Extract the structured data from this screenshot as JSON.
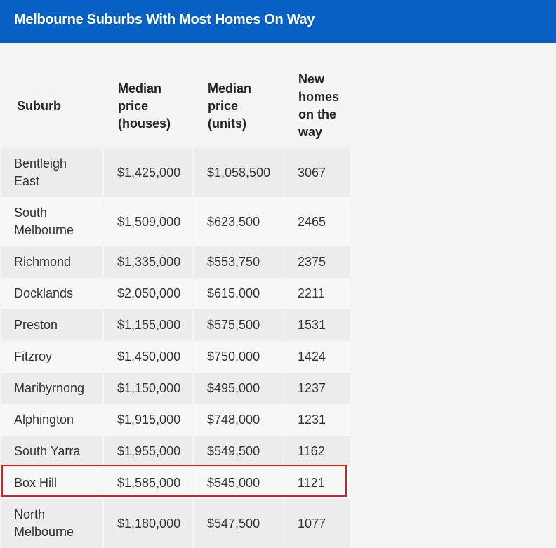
{
  "header": {
    "title": "Melbourne Suburbs With Most Homes On Way"
  },
  "chart_data": {
    "type": "table",
    "title": "Melbourne Suburbs With Most Homes On Way",
    "columns": [
      "Suburb",
      "Median price (houses)",
      "Median price (units)",
      "New homes on the way"
    ],
    "rows": [
      [
        "Bentleigh East",
        "$1,425,000",
        "$1,058,500",
        "3067"
      ],
      [
        "South Melbourne",
        "$1,509,000",
        "$623,500",
        "2465"
      ],
      [
        "Richmond",
        "$1,335,000",
        "$553,750",
        "2375"
      ],
      [
        "Docklands",
        "$2,050,000",
        "$615,000",
        "2211"
      ],
      [
        "Preston",
        "$1,155,000",
        "$575,500",
        "1531"
      ],
      [
        "Fitzroy",
        "$1,450,000",
        "$750,000",
        "1424"
      ],
      [
        "Maribyrnong",
        "$1,150,000",
        "$495,000",
        "1237"
      ],
      [
        "Alphington",
        "$1,915,000",
        "$748,000",
        "1231"
      ],
      [
        "South Yarra",
        "$1,955,000",
        "$549,500",
        "1162"
      ],
      [
        "Box Hill",
        "$1,585,000",
        "$545,000",
        "1121"
      ],
      [
        "North Melbourne",
        "$1,180,000",
        "$547,500",
        "1077"
      ]
    ],
    "highlighted_row": "Box Hill",
    "colors": {
      "header": "#0760c4",
      "highlight": "#d31f1f",
      "row_odd": "#ececec",
      "row_even": "#f7f7f7"
    }
  }
}
